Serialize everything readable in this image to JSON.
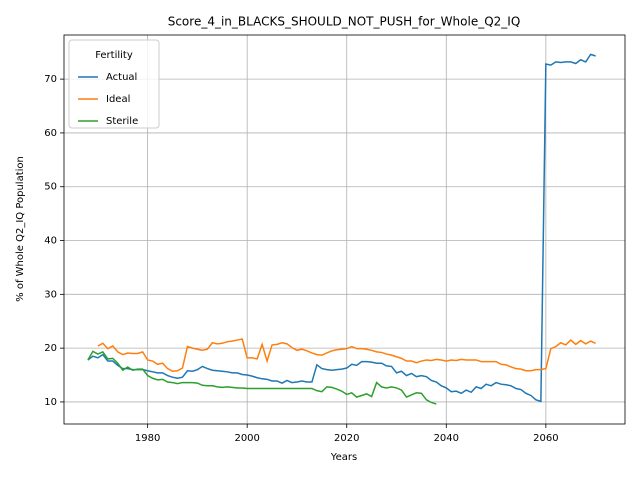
{
  "chart_data": {
    "type": "line",
    "title": "Score_4_in_BLACKS_SHOULD_NOT_PUSH_for_Whole_Q2_IQ",
    "x_label": "Years",
    "y_label": "% of Whole Q2_IQ Population",
    "legend_title": "Fertility",
    "legend_position": "upper left",
    "grid": true,
    "xlim": [
      1963.2,
      2075.9
    ],
    "ylim": [
      5.9,
      78.2
    ],
    "xticks": [
      1980,
      2000,
      2020,
      2040,
      2060
    ],
    "yticks": [
      10,
      20,
      30,
      40,
      50,
      60,
      70
    ],
    "x": [
      1968,
      1969,
      1970,
      1971,
      1972,
      1973,
      1974,
      1975,
      1976,
      1977,
      1978,
      1979,
      1980,
      1981,
      1982,
      1983,
      1984,
      1985,
      1986,
      1987,
      1988,
      1989,
      1990,
      1991,
      1992,
      1993,
      1994,
      1995,
      1996,
      1997,
      1998,
      1999,
      2000,
      2001,
      2002,
      2003,
      2004,
      2005,
      2006,
      2007,
      2008,
      2009,
      2010,
      2011,
      2012,
      2013,
      2014,
      2015,
      2016,
      2017,
      2018,
      2019,
      2020,
      2021,
      2022,
      2023,
      2024,
      2025,
      2026,
      2027,
      2028,
      2029,
      2030,
      2031,
      2032,
      2033,
      2034,
      2035,
      2036,
      2037,
      2038,
      2039,
      2040,
      2041,
      2042,
      2043,
      2044,
      2045,
      2046,
      2047,
      2048,
      2049,
      2050,
      2051,
      2052,
      2053,
      2054,
      2055,
      2056,
      2057,
      2058,
      2059,
      2060,
      2061,
      2062,
      2063,
      2064,
      2065,
      2066,
      2067,
      2068,
      2069,
      2070
    ],
    "series": [
      {
        "name": "Actual",
        "color": "#1f77b4",
        "values": [
          17.8,
          18.5,
          18.2,
          18.8,
          17.6,
          17.6,
          16.8,
          16.2,
          16.2,
          16.0,
          16.0,
          16.0,
          15.8,
          15.6,
          15.4,
          15.4,
          14.9,
          14.6,
          14.4,
          14.6,
          15.8,
          15.7,
          16.0,
          16.6,
          16.2,
          15.9,
          15.8,
          15.7,
          15.6,
          15.4,
          15.4,
          15.1,
          15.0,
          14.8,
          14.5,
          14.3,
          14.2,
          13.9,
          13.9,
          13.5,
          14.0,
          13.6,
          13.7,
          13.9,
          13.7,
          13.7,
          16.9,
          16.2,
          16.0,
          15.9,
          16.0,
          16.1,
          16.3,
          17.0,
          16.8,
          17.5,
          17.5,
          17.4,
          17.2,
          17.2,
          16.7,
          16.6,
          15.4,
          15.7,
          14.9,
          15.3,
          14.7,
          14.9,
          14.7,
          14.0,
          13.7,
          13.0,
          12.6,
          11.9,
          12.0,
          11.6,
          12.2,
          11.8,
          12.8,
          12.5,
          13.3,
          13.0,
          13.6,
          13.3,
          13.2,
          13.0,
          12.5,
          12.3,
          11.6,
          11.2,
          10.4,
          10.1,
          72.8,
          72.6,
          73.2,
          73.1,
          73.2,
          73.2,
          72.9,
          73.6,
          73.2,
          74.6,
          74.3
        ]
      },
      {
        "name": "Ideal",
        "color": "#ff7f0e",
        "values": [
          null,
          null,
          20.4,
          20.9,
          19.9,
          20.4,
          19.3,
          18.8,
          19.1,
          19.0,
          19.0,
          19.3,
          17.8,
          17.6,
          17.0,
          17.2,
          16.2,
          15.7,
          15.8,
          16.3,
          20.3,
          20.0,
          19.8,
          19.6,
          19.8,
          21.0,
          20.8,
          20.9,
          21.2,
          21.3,
          21.5,
          21.7,
          18.2,
          18.2,
          18.0,
          20.7,
          17.6,
          20.6,
          20.7,
          21.0,
          20.8,
          20.1,
          19.6,
          19.8,
          19.5,
          19.1,
          18.8,
          18.7,
          19.1,
          19.5,
          19.7,
          19.8,
          19.9,
          20.3,
          19.9,
          19.9,
          19.8,
          19.6,
          19.3,
          19.2,
          18.9,
          18.7,
          18.4,
          18.1,
          17.6,
          17.6,
          17.3,
          17.6,
          17.8,
          17.7,
          17.9,
          17.8,
          17.6,
          17.8,
          17.7,
          17.9,
          17.8,
          17.8,
          17.8,
          17.5,
          17.5,
          17.5,
          17.5,
          17.0,
          16.9,
          16.5,
          16.2,
          16.1,
          15.8,
          15.8,
          16.0,
          16.0,
          16.2,
          19.9,
          20.3,
          21.0,
          20.6,
          21.5,
          20.7,
          21.4,
          20.8,
          21.3,
          20.9
        ]
      },
      {
        "name": "Sterile",
        "color": "#2ca02c",
        "values": [
          17.8,
          19.4,
          18.9,
          19.3,
          18.0,
          18.1,
          17.2,
          15.9,
          16.5,
          15.9,
          16.1,
          16.1,
          14.9,
          14.4,
          14.1,
          14.2,
          13.7,
          13.6,
          13.4,
          13.6,
          13.6,
          13.6,
          13.5,
          13.1,
          13.0,
          13.0,
          12.8,
          12.7,
          12.8,
          12.7,
          12.6,
          12.6,
          12.5,
          12.5,
          12.5,
          12.5,
          12.5,
          12.5,
          12.5,
          12.5,
          12.5,
          12.5,
          12.5,
          12.5,
          12.5,
          12.5,
          12.1,
          11.9,
          12.8,
          12.7,
          12.4,
          12.0,
          11.4,
          11.7,
          10.9,
          11.2,
          11.5,
          11.0,
          13.6,
          12.8,
          12.6,
          12.8,
          12.6,
          12.2,
          10.9,
          11.3,
          11.7,
          11.6,
          10.4,
          9.9,
          9.6,
          null,
          null,
          null,
          null,
          null,
          null,
          null,
          null,
          null,
          null,
          null,
          null,
          null,
          null,
          null,
          null,
          null,
          null,
          null,
          null,
          null,
          null,
          null,
          null,
          null,
          null,
          null,
          null,
          null,
          null,
          null,
          null
        ]
      }
    ]
  }
}
